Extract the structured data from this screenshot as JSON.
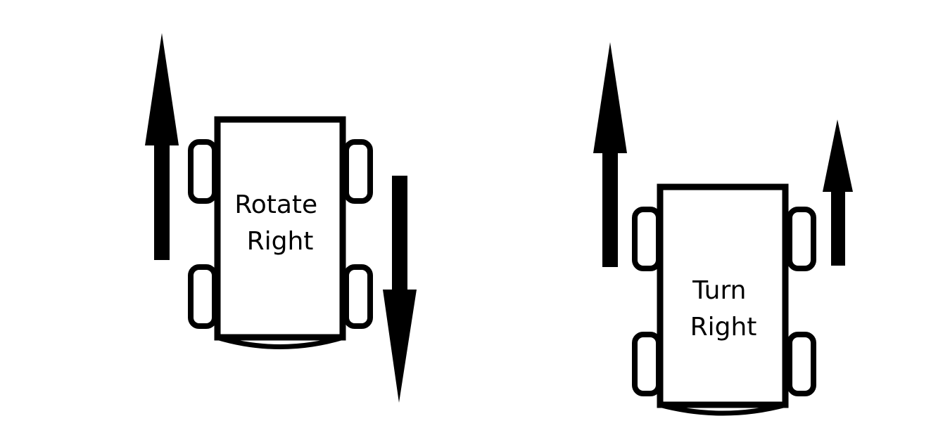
{
  "diagrams": [
    {
      "label_lines": [
        "Rotate",
        "Right"
      ],
      "left_arrow": "up",
      "right_arrow": "down"
    },
    {
      "label_lines": [
        "Turn",
        "Right"
      ],
      "left_arrow": "up",
      "right_arrow": "up"
    }
  ],
  "colors": {
    "stroke": "#000000",
    "background": "#ffffff"
  }
}
